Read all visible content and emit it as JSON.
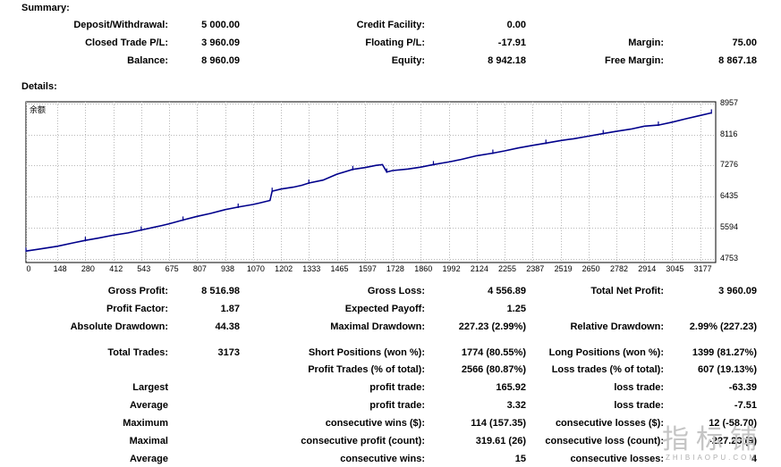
{
  "summary": {
    "title": "Summary:",
    "deposit_label": "Deposit/Withdrawal:",
    "deposit_value": "5 000.00",
    "credit_label": "Credit Facility:",
    "credit_value": "0.00",
    "closed_pl_label": "Closed Trade P/L:",
    "closed_pl_value": "3 960.09",
    "floating_pl_label": "Floating P/L:",
    "floating_pl_value": "-17.91",
    "margin_label": "Margin:",
    "margin_value": "75.00",
    "balance_label": "Balance:",
    "balance_value": "8 960.09",
    "equity_label": "Equity:",
    "equity_value": "8 942.18",
    "free_margin_label": "Free Margin:",
    "free_margin_value": "8 867.18"
  },
  "details": {
    "title": "Details:"
  },
  "chart_data": {
    "type": "line",
    "title": "余额",
    "xlabel": "",
    "ylabel": "",
    "x_ticks": [
      0,
      148,
      280,
      412,
      543,
      675,
      807,
      938,
      1070,
      1202,
      1333,
      1465,
      1597,
      1728,
      1860,
      1992,
      2124,
      2255,
      2387,
      2519,
      2650,
      2782,
      2914,
      3045,
      3177
    ],
    "y_ticks": [
      4753,
      5594,
      6435,
      7276,
      8116,
      8957
    ],
    "xlim": [
      0,
      3250
    ],
    "ylim": [
      4650,
      9000
    ],
    "grid": true,
    "line_color": "#00008b",
    "series": [
      {
        "x": [
          0,
          60,
          148,
          220,
          280,
          340,
          412,
          480,
          543,
          600,
          640,
          675,
          740,
          807,
          870,
          938,
          1000,
          1070,
          1100,
          1150,
          1160,
          1202,
          1260,
          1300,
          1333,
          1400,
          1465,
          1500,
          1540,
          1597,
          1650,
          1680,
          1700,
          1728,
          1800,
          1860,
          1920,
          1992,
          2050,
          2124,
          2200,
          2255,
          2320,
          2387,
          2450,
          2519,
          2580,
          2650,
          2720,
          2782,
          2850,
          2914,
          2980,
          3045,
          3110,
          3177,
          3230
        ],
        "y": [
          4960,
          5010,
          5090,
          5180,
          5250,
          5310,
          5390,
          5450,
          5530,
          5600,
          5650,
          5700,
          5800,
          5900,
          5980,
          6080,
          6150,
          6220,
          6260,
          6330,
          6580,
          6640,
          6690,
          6740,
          6800,
          6880,
          7040,
          7100,
          7170,
          7220,
          7280,
          7300,
          7100,
          7140,
          7180,
          7230,
          7300,
          7370,
          7440,
          7540,
          7610,
          7670,
          7750,
          7820,
          7880,
          7950,
          8000,
          8070,
          8140,
          8200,
          8260,
          8340,
          8370,
          8450,
          8540,
          8630,
          8700
        ]
      }
    ]
  },
  "stats": {
    "gross_profit_label": "Gross Profit:",
    "gross_profit_value": "8 516.98",
    "gross_loss_label": "Gross Loss:",
    "gross_loss_value": "4 556.89",
    "total_net_profit_label": "Total Net Profit:",
    "total_net_profit_value": "3 960.09",
    "profit_factor_label": "Profit Factor:",
    "profit_factor_value": "1.87",
    "expected_payoff_label": "Expected Payoff:",
    "expected_payoff_value": "1.25",
    "absolute_drawdown_label": "Absolute Drawdown:",
    "absolute_drawdown_value": "44.38",
    "maximal_drawdown_label": "Maximal Drawdown:",
    "maximal_drawdown_value": "227.23 (2.99%)",
    "relative_drawdown_label": "Relative Drawdown:",
    "relative_drawdown_value": "2.99% (227.23)",
    "total_trades_label": "Total Trades:",
    "total_trades_value": "3173",
    "short_positions_label": "Short Positions (won %):",
    "short_positions_value": "1774 (80.55%)",
    "long_positions_label": "Long Positions (won %):",
    "long_positions_value": "1399 (81.27%)",
    "profit_trades_label": "Profit Trades (% of total):",
    "profit_trades_value": "2566 (80.87%)",
    "loss_trades_label": "Loss trades (% of total):",
    "loss_trades_value": "607 (19.13%)",
    "largest_label": "Largest",
    "largest_profit_label": "profit trade:",
    "largest_profit_value": "165.92",
    "largest_loss_label": "loss trade:",
    "largest_loss_value": "-63.39",
    "average_label": "Average",
    "average_profit_label": "profit trade:",
    "average_profit_value": "3.32",
    "average_loss_label": "loss trade:",
    "average_loss_value": "-7.51",
    "maximum_label": "Maximum",
    "max_consec_wins_label": "consecutive wins ($):",
    "max_consec_wins_value": "114 (157.35)",
    "max_consec_losses_label": "consecutive losses ($):",
    "max_consec_losses_value": "12 (-58.70)",
    "maximal_label": "Maximal",
    "maximal_consec_profit_label": "consecutive profit (count):",
    "maximal_consec_profit_value": "319.61 (26)",
    "maximal_consec_loss_label": "consecutive loss (count):",
    "maximal_consec_loss_value": "-227.23 (9)",
    "average2_label": "Average",
    "avg_consec_wins_label": "consecutive wins:",
    "avg_consec_wins_value": "15",
    "avg_consec_losses_label": "consecutive losses:",
    "avg_consec_losses_value": "4"
  },
  "watermark": {
    "cn": "指标铺",
    "en": "ZHIBIAOPU.COM"
  }
}
